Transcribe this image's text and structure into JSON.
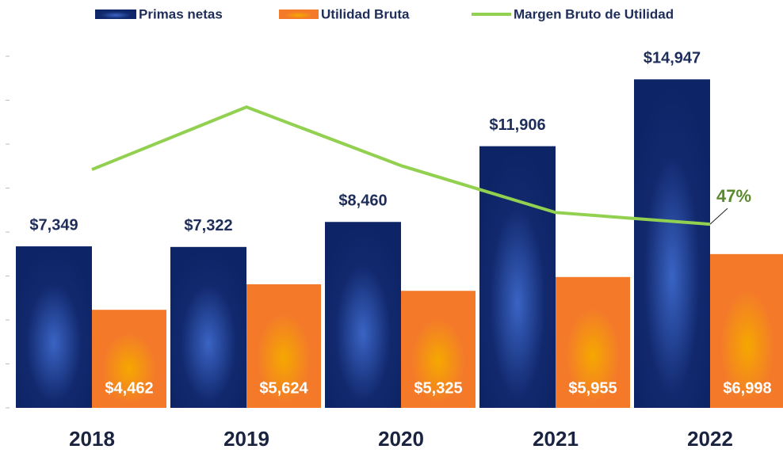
{
  "chart_data": {
    "type": "bar-line",
    "categories": [
      "2018",
      "2019",
      "2020",
      "2021",
      "2022"
    ],
    "series": [
      {
        "name": "Primas netas",
        "color": "#0d2466",
        "values": [
          7349,
          7322,
          8460,
          11906,
          14947
        ],
        "value_labels": [
          "$7,349",
          "$7,322",
          "$8,460",
          "$11,906",
          "$14,947"
        ]
      },
      {
        "name": "Utilidad Bruta",
        "color": "#f47a2a",
        "values": [
          4462,
          5624,
          5325,
          5955,
          6998
        ],
        "value_labels": [
          "$4,462",
          "$5,624",
          "$5,325",
          "$5,955",
          "$6,998"
        ]
      },
      {
        "name": "Margen Bruto de Utilidad",
        "color": "#92d050",
        "axis": "y2",
        "values": [
          61,
          77,
          62,
          50,
          47
        ],
        "value_labels": [
          null,
          null,
          null,
          null,
          "47%"
        ]
      }
    ],
    "ylim": [
      0,
      16000
    ],
    "yticks": [
      0,
      2000,
      4000,
      6000,
      8000,
      10000,
      12000,
      14000,
      16000
    ],
    "y2lim": [
      0,
      90
    ]
  }
}
